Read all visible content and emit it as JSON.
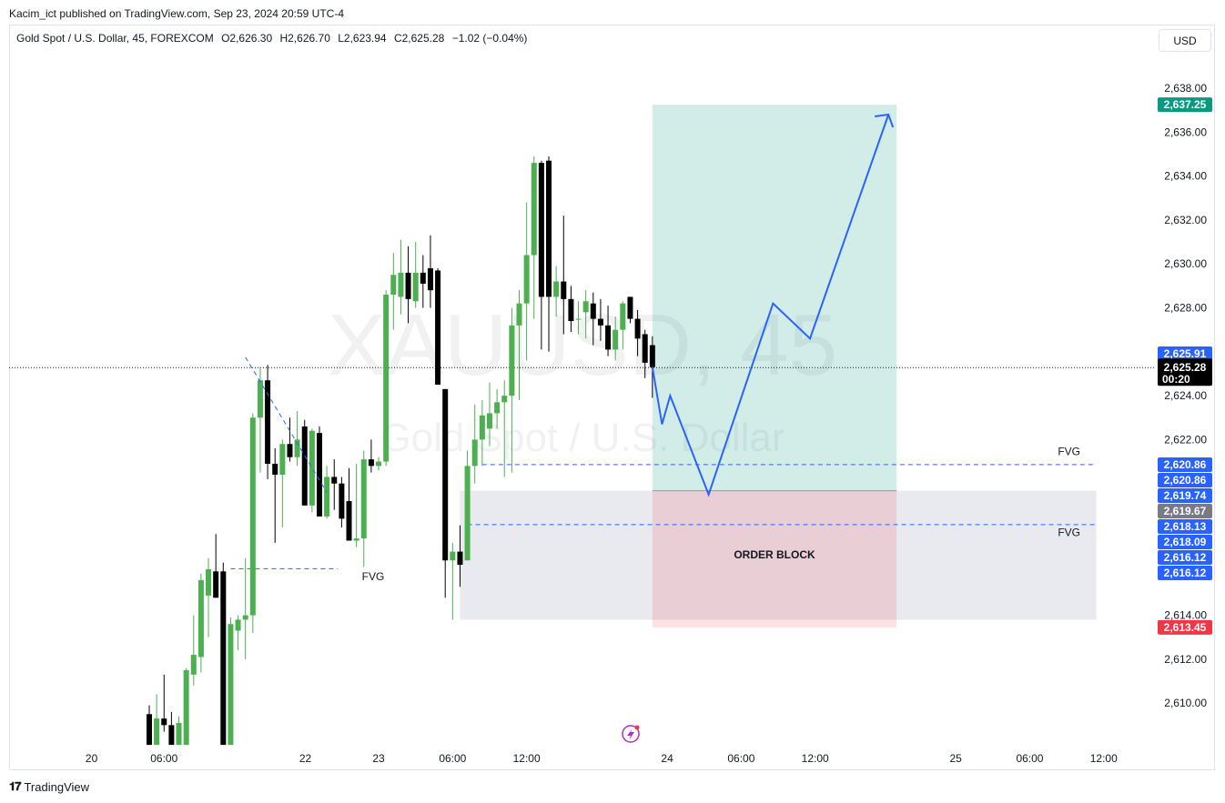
{
  "header": {
    "published": "Kacim_ict published on TradingView.com, Sep 23, 2024 20:59 UTC-4",
    "symbol": "Gold Spot / U.S. Dollar, 45, FOREXCOM",
    "open": "O2,626.30",
    "high": "H2,626.70",
    "low": "L2,623.94",
    "close": "C2,625.28",
    "change": "−1.02 (−0.04%)",
    "currency": "USD"
  },
  "brand": {
    "name": "TradingView",
    "logo": "tradingview-logo"
  },
  "watermark": {
    "ticker": "XAUUSD, 45",
    "name": "Gold Spot / U.S. Dollar"
  },
  "chart_data": {
    "type": "candlestick",
    "y_range": [
      2608.1,
      2640.0
    ],
    "y_ticks": [
      {
        "value": 2638,
        "label": "2,638.00"
      },
      {
        "value": 2636,
        "label": "2,636.00"
      },
      {
        "value": 2634,
        "label": "2,634.00"
      },
      {
        "value": 2632,
        "label": "2,632.00"
      },
      {
        "value": 2630,
        "label": "2,630.00"
      },
      {
        "value": 2628,
        "label": "2,628.00"
      },
      {
        "value": 2624,
        "label": "2,624.00"
      },
      {
        "value": 2622,
        "label": "2,622.00"
      },
      {
        "value": 2614,
        "label": "2,614.00"
      },
      {
        "value": 2612,
        "label": "2,612.00"
      },
      {
        "value": 2610,
        "label": "2,610.00"
      }
    ],
    "x_ticks": [
      {
        "bar": -7.8,
        "label": "20"
      },
      {
        "bar": 2,
        "label": "06:00"
      },
      {
        "bar": 21.1,
        "label": "22"
      },
      {
        "bar": 31,
        "label": "23"
      },
      {
        "bar": 41,
        "label": "06:00"
      },
      {
        "bar": 51,
        "label": "12:00"
      },
      {
        "bar": 70,
        "label": "24"
      },
      {
        "bar": 80,
        "label": "06:00"
      },
      {
        "bar": 90,
        "label": "12:00"
      },
      {
        "bar": 109,
        "label": "25"
      },
      {
        "bar": 119,
        "label": "06:00"
      },
      {
        "bar": 129,
        "label": "12:00"
      }
    ],
    "candles": [
      {
        "o": 2609.5,
        "h": 2609.9,
        "l": 2608.1,
        "c": 2608.1
      },
      {
        "o": 2608.1,
        "h": 2610.4,
        "l": 2608.1,
        "c": 2609.3
      },
      {
        "o": 2609.3,
        "h": 2611.3,
        "l": 2608.7,
        "c": 2609.0
      },
      {
        "o": 2609.0,
        "h": 2609.6,
        "l": 2608.1,
        "c": 2608.1
      },
      {
        "o": 2608.1,
        "h": 2609.4,
        "l": 2608.1,
        "c": 2609.1
      },
      {
        "o": 2608.1,
        "h": 2611.6,
        "l": 2608.1,
        "c": 2611.5
      },
      {
        "o": 2611.3,
        "h": 2614.0,
        "l": 2610.8,
        "c": 2612.2
      },
      {
        "o": 2612.1,
        "h": 2615.9,
        "l": 2611.4,
        "c": 2615.6
      },
      {
        "o": 2614.9,
        "h": 2616.6,
        "l": 2613.0,
        "c": 2616.1
      },
      {
        "o": 2616.0,
        "h": 2617.7,
        "l": 2614.8,
        "c": 2614.8
      },
      {
        "o": 2616.0,
        "h": 2616.4,
        "l": 2608.1,
        "c": 2608.1
      },
      {
        "o": 2608.1,
        "h": 2613.9,
        "l": 2608.1,
        "c": 2613.6
      },
      {
        "o": 2613.3,
        "h": 2614.0,
        "l": 2612.4,
        "c": 2613.8
      },
      {
        "o": 2613.8,
        "h": 2616.6,
        "l": 2612.0,
        "c": 2614.0
      },
      {
        "o": 2614.0,
        "h": 2623.2,
        "l": 2613.2,
        "c": 2623.0
      },
      {
        "o": 2623.0,
        "h": 2625.3,
        "l": 2620.5,
        "c": 2624.7
      },
      {
        "o": 2624.7,
        "h": 2625.4,
        "l": 2620.2,
        "c": 2620.9
      },
      {
        "o": 2620.9,
        "h": 2621.6,
        "l": 2617.3,
        "c": 2620.4
      },
      {
        "o": 2620.4,
        "h": 2622.0,
        "l": 2618.0,
        "c": 2621.8
      },
      {
        "o": 2621.8,
        "h": 2623.0,
        "l": 2621.0,
        "c": 2621.2
      },
      {
        "o": 2621.2,
        "h": 2623.3,
        "l": 2620.8,
        "c": 2622.0
      },
      {
        "o": 2622.6,
        "h": 2622.9,
        "l": 2619.0,
        "c": 2619.0
      },
      {
        "o": 2619.0,
        "h": 2622.5,
        "l": 2618.7,
        "c": 2622.4
      },
      {
        "o": 2622.3,
        "h": 2622.6,
        "l": 2618.5,
        "c": 2618.5
      },
      {
        "o": 2618.5,
        "h": 2620.8,
        "l": 2618.4,
        "c": 2620.3
      },
      {
        "o": 2620.3,
        "h": 2621.1,
        "l": 2618.8,
        "c": 2620.0
      },
      {
        "o": 2620.0,
        "h": 2620.3,
        "l": 2618.0,
        "c": 2618.4
      },
      {
        "o": 2619.2,
        "h": 2620.7,
        "l": 2617.4,
        "c": 2617.4
      },
      {
        "o": 2617.4,
        "h": 2620.9,
        "l": 2617.1,
        "c": 2617.5
      },
      {
        "o": 2617.5,
        "h": 2621.5,
        "l": 2616.2,
        "c": 2621.1
      },
      {
        "o": 2621.1,
        "h": 2622.0,
        "l": 2620.5,
        "c": 2620.8
      },
      {
        "o": 2620.8,
        "h": 2621.2,
        "l": 2620.6,
        "c": 2621.0
      },
      {
        "o": 2621.0,
        "h": 2628.8,
        "l": 2620.8,
        "c": 2628.6
      },
      {
        "o": 2628.6,
        "h": 2630.5,
        "l": 2627.0,
        "c": 2629.5
      },
      {
        "o": 2628.5,
        "h": 2631.1,
        "l": 2627.7,
        "c": 2629.6
      },
      {
        "o": 2629.6,
        "h": 2630.8,
        "l": 2627.3,
        "c": 2628.4
      },
      {
        "o": 2628.3,
        "h": 2631.0,
        "l": 2628.0,
        "c": 2629.6
      },
      {
        "o": 2629.6,
        "h": 2630.4,
        "l": 2628.0,
        "c": 2629.1
      },
      {
        "o": 2629.8,
        "h": 2631.3,
        "l": 2628.0,
        "c": 2628.8
      },
      {
        "o": 2629.7,
        "h": 2629.8,
        "l": 2624.5,
        "c": 2624.5
      },
      {
        "o": 2624.3,
        "h": 2624.3,
        "l": 2614.8,
        "c": 2616.5
      },
      {
        "o": 2616.5,
        "h": 2617.3,
        "l": 2613.8,
        "c": 2616.9
      },
      {
        "o": 2616.9,
        "h": 2618.1,
        "l": 2615.3,
        "c": 2616.3
      },
      {
        "o": 2616.5,
        "h": 2621.5,
        "l": 2616.5,
        "c": 2620.8
      },
      {
        "o": 2620.8,
        "h": 2623.6,
        "l": 2620.0,
        "c": 2622.0
      },
      {
        "o": 2622.0,
        "h": 2623.8,
        "l": 2620.8,
        "c": 2623.1
      },
      {
        "o": 2622.5,
        "h": 2624.6,
        "l": 2621.7,
        "c": 2623.2
      },
      {
        "o": 2623.2,
        "h": 2624.3,
        "l": 2622.5,
        "c": 2623.7
      },
      {
        "o": 2623.7,
        "h": 2624.7,
        "l": 2620.3,
        "c": 2624.0
      },
      {
        "o": 2624.0,
        "h": 2628.0,
        "l": 2620.5,
        "c": 2627.2
      },
      {
        "o": 2627.2,
        "h": 2628.8,
        "l": 2623.8,
        "c": 2628.2
      },
      {
        "o": 2628.2,
        "h": 2632.8,
        "l": 2625.6,
        "c": 2630.4
      },
      {
        "o": 2630.4,
        "h": 2634.9,
        "l": 2627.5,
        "c": 2634.6
      },
      {
        "o": 2634.6,
        "h": 2634.7,
        "l": 2626.1,
        "c": 2628.5
      },
      {
        "o": 2634.7,
        "h": 2634.9,
        "l": 2626.0,
        "c": 2628.5
      },
      {
        "o": 2628.5,
        "h": 2629.9,
        "l": 2627.6,
        "c": 2629.2
      },
      {
        "o": 2629.2,
        "h": 2632.2,
        "l": 2626.8,
        "c": 2628.4
      },
      {
        "o": 2628.4,
        "h": 2629.0,
        "l": 2626.9,
        "c": 2627.4
      },
      {
        "o": 2627.5,
        "h": 2628.3,
        "l": 2626.8,
        "c": 2627.5
      },
      {
        "o": 2627.8,
        "h": 2628.8,
        "l": 2626.6,
        "c": 2628.3
      },
      {
        "o": 2628.2,
        "h": 2628.7,
        "l": 2626.3,
        "c": 2627.5
      },
      {
        "o": 2627.5,
        "h": 2628.4,
        "l": 2626.5,
        "c": 2627.2
      },
      {
        "o": 2627.2,
        "h": 2628.1,
        "l": 2625.8,
        "c": 2626.1
      },
      {
        "o": 2626.1,
        "h": 2627.6,
        "l": 2625.6,
        "c": 2627.0
      },
      {
        "o": 2627.0,
        "h": 2628.3,
        "l": 2626.1,
        "c": 2628.2
      },
      {
        "o": 2628.5,
        "h": 2628.5,
        "l": 2627.3,
        "c": 2627.5
      },
      {
        "o": 2627.5,
        "h": 2627.9,
        "l": 2625.8,
        "c": 2626.6
      },
      {
        "o": 2626.8,
        "h": 2627.0,
        "l": 2624.8,
        "c": 2625.5
      },
      {
        "o": 2626.3,
        "h": 2626.7,
        "l": 2623.9,
        "c": 2625.3
      }
    ],
    "current_price": 2625.28,
    "countdown": "00:20",
    "annotations": {
      "order_block_label": "ORDER BLOCK",
      "fvg_labels": [
        "FVG",
        "FVG",
        "FVG"
      ],
      "target_price": 2637.25,
      "entry_price": 2619.67,
      "stop_price": 2613.45,
      "profit_zone": {
        "from_bar": 68,
        "to_bar": 101,
        "low": 2619.67,
        "high": 2637.25
      },
      "loss_zone": {
        "from_bar": 68,
        "to_bar": 101,
        "low": 2613.45,
        "high": 2619.67
      },
      "order_block_zone": {
        "from_bar": 42,
        "to_bar": 128,
        "low": 2613.8,
        "high": 2619.67
      },
      "fvg_lines": [
        {
          "price": 2620.86,
          "from_bar": 45,
          "to_bar": 128
        },
        {
          "price": 2618.13,
          "from_bar": 43,
          "to_bar": 128
        },
        {
          "price": 2616.12,
          "from_bar": 11,
          "to_bar": 25.5
        }
      ],
      "trend_line": {
        "from": {
          "bar": 13,
          "price": 2625.75
        },
        "to": {
          "bar": 24,
          "price": 2619.6
        }
      },
      "projection_path": [
        {
          "bar": 68,
          "price": 2625.3
        },
        {
          "bar": 69.3,
          "price": 2622.7
        },
        {
          "bar": 70.4,
          "price": 2624.0
        },
        {
          "bar": 75.6,
          "price": 2619.5
        },
        {
          "bar": 84.3,
          "price": 2628.2
        },
        {
          "bar": 89.3,
          "price": 2626.6
        },
        {
          "bar": 99.9,
          "price": 2636.8
        }
      ],
      "axis_tags": [
        {
          "value": 2637.25,
          "label": "2,637.25",
          "color": "#089981"
        },
        {
          "value": 2625.91,
          "label": "2,625.91",
          "color": "#2962ff"
        },
        {
          "value": 2620.86,
          "label": "2,620.86",
          "color": "#2962ff",
          "slot": -1
        },
        {
          "value": 2620.86,
          "label": "2,620.86",
          "color": "#2962ff",
          "slot": 0
        },
        {
          "value": 2619.74,
          "label": "2,619.74",
          "color": "#2962ff",
          "slot": 1
        },
        {
          "value": 2619.67,
          "label": "2,619.67",
          "color": "#787b86",
          "slot": 2
        },
        {
          "value": 2618.13,
          "label": "2,618.13",
          "color": "#2962ff",
          "slot": 3
        },
        {
          "value": 2618.09,
          "label": "2,618.09",
          "color": "#2962ff",
          "slot": 4
        },
        {
          "value": 2616.12,
          "label": "2,616.12",
          "color": "#2962ff",
          "slot": 5
        },
        {
          "value": 2616.12,
          "label": "2,616.12",
          "color": "#2962ff",
          "slot": 6
        },
        {
          "value": 2613.45,
          "label": "2,613.45",
          "color": "#f23645"
        }
      ]
    },
    "colors": {
      "up": "#4caf50",
      "down": "#000000",
      "profit": "#089981",
      "loss": "#f23645",
      "line": "#2962ff"
    }
  }
}
